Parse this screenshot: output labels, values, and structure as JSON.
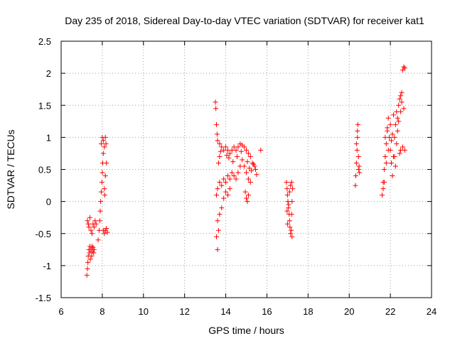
{
  "chart_data": {
    "type": "scatter",
    "title": "Day 235 of 2018, Sidereal Day-to-day VTEC variation (SDTVAR) for receiver kat1",
    "xlabel": "GPS time / hours",
    "ylabel": "SDTVAR / TECUs",
    "xlim": [
      6,
      24
    ],
    "ylim": [
      -1.5,
      2.5
    ],
    "xticks": [
      "6",
      "8",
      "10",
      "12",
      "14",
      "16",
      "18",
      "20",
      "22",
      "24"
    ],
    "yticks": [
      "-1.5",
      "-1",
      "-0.5",
      "0",
      "0.5",
      "1",
      "1.5",
      "2",
      "2.5"
    ],
    "grid": true,
    "marker": "+",
    "series": [
      {
        "name": "SDTVAR",
        "color": "#ff0000",
        "points": [
          [
            7.25,
            -1.15
          ],
          [
            7.28,
            -1.05
          ],
          [
            7.3,
            -0.95
          ],
          [
            7.32,
            -0.85
          ],
          [
            7.35,
            -0.75
          ],
          [
            7.38,
            -0.8
          ],
          [
            7.4,
            -0.7
          ],
          [
            7.42,
            -0.9
          ],
          [
            7.45,
            -0.75
          ],
          [
            7.48,
            -0.85
          ],
          [
            7.5,
            -0.7
          ],
          [
            7.52,
            -0.78
          ],
          [
            7.55,
            -0.72
          ],
          [
            7.58,
            -0.8
          ],
          [
            7.6,
            -0.75
          ],
          [
            7.28,
            -0.3
          ],
          [
            7.32,
            -0.35
          ],
          [
            7.35,
            -0.4
          ],
          [
            7.4,
            -0.25
          ],
          [
            7.45,
            -0.45
          ],
          [
            7.5,
            -0.5
          ],
          [
            7.55,
            -0.35
          ],
          [
            7.6,
            -0.4
          ],
          [
            7.65,
            -0.3
          ],
          [
            7.7,
            -0.35
          ],
          [
            7.8,
            -0.6
          ],
          [
            7.85,
            -0.45
          ],
          [
            7.88,
            -0.3
          ],
          [
            7.9,
            -0.15
          ],
          [
            7.92,
            0.0
          ],
          [
            7.95,
            0.15
          ],
          [
            7.98,
            0.3
          ],
          [
            8.0,
            0.45
          ],
          [
            8.02,
            0.6
          ],
          [
            8.05,
            0.75
          ],
          [
            7.95,
            0.9
          ],
          [
            8.0,
            1.0
          ],
          [
            8.05,
            0.95
          ],
          [
            8.1,
            0.85
          ],
          [
            8.15,
            1.0
          ],
          [
            8.18,
            0.9
          ],
          [
            8.2,
            0.6
          ],
          [
            8.15,
            0.4
          ],
          [
            8.1,
            0.2
          ],
          [
            8.12,
            0.1
          ],
          [
            8.05,
            -0.45
          ],
          [
            8.1,
            -0.5
          ],
          [
            8.15,
            -0.45
          ],
          [
            8.2,
            -0.42
          ],
          [
            8.25,
            -0.48
          ],
          [
            13.5,
            1.55
          ],
          [
            13.52,
            1.45
          ],
          [
            13.55,
            1.2
          ],
          [
            13.58,
            1.05
          ],
          [
            13.6,
            0.95
          ],
          [
            13.7,
            0.9
          ],
          [
            13.8,
            0.85
          ],
          [
            13.9,
            0.8
          ],
          [
            14.0,
            0.85
          ],
          [
            14.1,
            0.8
          ],
          [
            14.2,
            0.75
          ],
          [
            14.3,
            0.8
          ],
          [
            14.4,
            0.85
          ],
          [
            14.5,
            0.8
          ],
          [
            14.6,
            0.85
          ],
          [
            14.7,
            0.9
          ],
          [
            14.8,
            0.88
          ],
          [
            14.9,
            0.85
          ],
          [
            15.0,
            0.8
          ],
          [
            15.1,
            0.75
          ],
          [
            15.2,
            0.7
          ],
          [
            15.3,
            0.6
          ],
          [
            15.4,
            0.55
          ],
          [
            15.7,
            0.8
          ],
          [
            15.5,
            0.42
          ],
          [
            13.55,
            0.1
          ],
          [
            13.6,
            0.2
          ],
          [
            13.7,
            0.3
          ],
          [
            13.8,
            0.25
          ],
          [
            13.9,
            0.35
          ],
          [
            14.0,
            0.3
          ],
          [
            14.1,
            0.4
          ],
          [
            14.2,
            0.35
          ],
          [
            14.3,
            0.45
          ],
          [
            14.4,
            0.4
          ],
          [
            14.5,
            0.35
          ],
          [
            14.6,
            0.45
          ],
          [
            14.7,
            0.55
          ],
          [
            14.8,
            0.65
          ],
          [
            14.9,
            0.55
          ],
          [
            15.0,
            0.45
          ],
          [
            15.1,
            0.35
          ],
          [
            15.2,
            0.3
          ],
          [
            14.95,
            0.15
          ],
          [
            15.0,
            0.05
          ],
          [
            15.05,
            0.0
          ],
          [
            15.1,
            0.1
          ],
          [
            13.6,
            -0.3
          ],
          [
            13.55,
            -0.55
          ],
          [
            13.6,
            -0.75
          ],
          [
            13.65,
            -0.45
          ],
          [
            13.7,
            -0.2
          ],
          [
            13.8,
            -0.1
          ],
          [
            13.9,
            0.05
          ],
          [
            14.0,
            0.15
          ],
          [
            14.1,
            0.1
          ],
          [
            14.2,
            0.2
          ],
          [
            13.65,
            0.6
          ],
          [
            13.7,
            0.7
          ],
          [
            13.75,
            0.78
          ],
          [
            14.05,
            0.72
          ],
          [
            14.15,
            0.68
          ],
          [
            14.35,
            0.62
          ],
          [
            14.55,
            0.7
          ],
          [
            14.75,
            0.78
          ],
          [
            15.05,
            0.62
          ],
          [
            15.15,
            0.52
          ],
          [
            15.25,
            0.48
          ],
          [
            15.35,
            0.58
          ],
          [
            15.45,
            0.5
          ],
          [
            16.95,
            0.3
          ],
          [
            16.98,
            0.2
          ],
          [
            17.0,
            0.1
          ],
          [
            17.02,
            0.0
          ],
          [
            17.05,
            -0.1
          ],
          [
            17.08,
            -0.2
          ],
          [
            17.1,
            -0.3
          ],
          [
            17.12,
            -0.4
          ],
          [
            17.15,
            -0.5
          ],
          [
            17.18,
            -0.45
          ],
          [
            17.2,
            -0.2
          ],
          [
            17.22,
            0.0
          ],
          [
            17.25,
            0.2
          ],
          [
            17.2,
            0.3
          ],
          [
            17.15,
            0.25
          ],
          [
            17.1,
            0.15
          ],
          [
            17.05,
            -0.05
          ],
          [
            17.0,
            -0.35
          ],
          [
            16.98,
            -0.15
          ],
          [
            17.22,
            -0.55
          ],
          [
            20.3,
            0.25
          ],
          [
            20.32,
            0.4
          ],
          [
            20.35,
            0.6
          ],
          [
            20.38,
            0.8
          ],
          [
            20.4,
            1.0
          ],
          [
            20.42,
            1.2
          ],
          [
            20.45,
            0.7
          ],
          [
            20.48,
            0.55
          ],
          [
            20.5,
            0.45
          ],
          [
            20.35,
            0.9
          ],
          [
            20.4,
            1.1
          ],
          [
            20.45,
            0.5
          ],
          [
            21.6,
            0.1
          ],
          [
            21.65,
            0.3
          ],
          [
            21.7,
            0.5
          ],
          [
            21.75,
            0.7
          ],
          [
            21.8,
            0.9
          ],
          [
            21.85,
            1.1
          ],
          [
            21.9,
            1.3
          ],
          [
            21.95,
            1.0
          ],
          [
            22.0,
            0.8
          ],
          [
            22.05,
            0.6
          ],
          [
            22.1,
            0.4
          ],
          [
            22.15,
            0.7
          ],
          [
            22.2,
            1.0
          ],
          [
            22.25,
            1.2
          ],
          [
            22.3,
            1.4
          ],
          [
            22.35,
            1.3
          ],
          [
            22.4,
            1.5
          ],
          [
            22.45,
            1.6
          ],
          [
            22.5,
            1.65
          ],
          [
            22.55,
            1.7
          ],
          [
            22.6,
            2.05
          ],
          [
            22.65,
            2.1
          ],
          [
            22.7,
            2.08
          ],
          [
            22.5,
            0.8
          ],
          [
            22.6,
            0.85
          ],
          [
            21.7,
            0.3
          ],
          [
            21.8,
            0.6
          ],
          [
            21.9,
            0.8
          ],
          [
            22.0,
            1.2
          ],
          [
            22.1,
            1.05
          ],
          [
            22.2,
            0.7
          ],
          [
            22.3,
            0.9
          ],
          [
            22.4,
            1.25
          ],
          [
            22.55,
            1.55
          ],
          [
            22.65,
            1.45
          ],
          [
            21.75,
            1.0
          ],
          [
            21.85,
            1.15
          ],
          [
            22.05,
            0.95
          ],
          [
            22.25,
            0.55
          ],
          [
            22.45,
            0.75
          ],
          [
            22.7,
            0.8
          ],
          [
            21.65,
            0.2
          ],
          [
            22.35,
            1.1
          ],
          [
            22.15,
            1.35
          ],
          [
            22.5,
            1.4
          ]
        ]
      }
    ]
  }
}
